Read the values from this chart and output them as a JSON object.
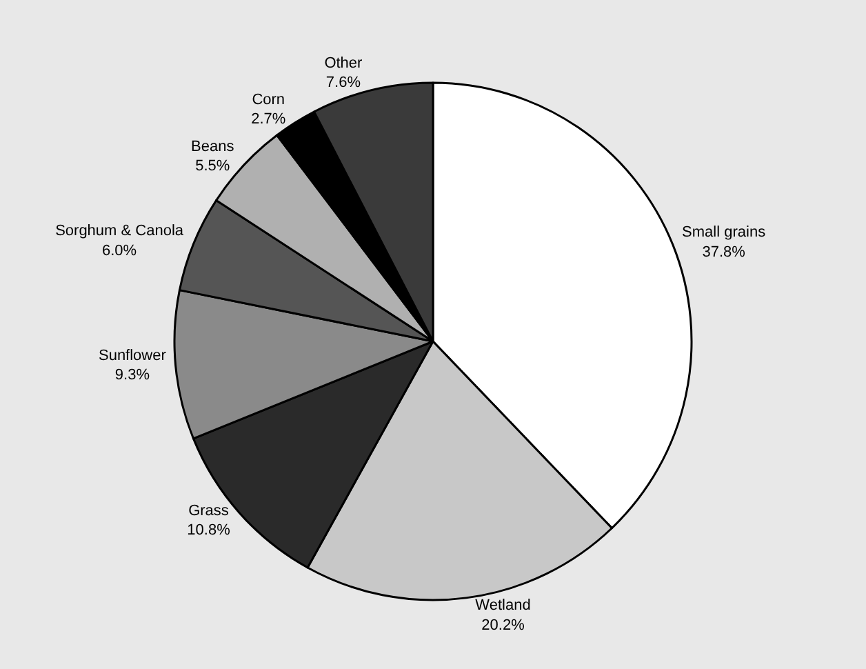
{
  "chart_data": {
    "type": "pie",
    "categories": [
      "Small grains",
      "Wetland",
      "Grass",
      "Sunflower",
      "Sorghum & Canola",
      "Beans",
      "Corn",
      "Other"
    ],
    "values": [
      37.8,
      20.2,
      10.8,
      9.3,
      6.0,
      5.5,
      2.7,
      7.6
    ],
    "value_labels": [
      "37.8%",
      "20.2%",
      "10.8%",
      "9.3%",
      "6.0%",
      "5.5%",
      "2.7%",
      "7.6%"
    ],
    "colors": [
      "#ffffff",
      "#c8c8c8",
      "#2a2a2a",
      "#8a8a8a",
      "#555555",
      "#b0b0b0",
      "#000000",
      "#3a3a3a"
    ]
  }
}
